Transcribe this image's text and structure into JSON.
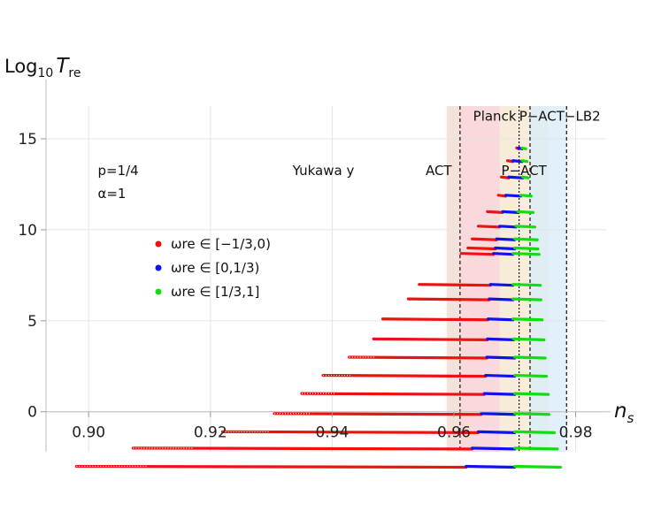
{
  "chart_data": {
    "type": "scatter",
    "title": "",
    "xlabel": "n_s",
    "ylabel": "Log10 T_re",
    "xlim": [
      0.893,
      0.985
    ],
    "ylim": [
      -2.2,
      16.8
    ],
    "x_ticks": [
      0.9,
      0.92,
      0.94,
      0.96,
      0.98
    ],
    "x_tick_labels": [
      "0.90",
      "0.92",
      "0.94",
      "0.96",
      "0.98"
    ],
    "y_ticks": [
      0,
      5,
      10,
      15
    ],
    "y_tick_labels": [
      "0",
      "5",
      "10",
      "15"
    ],
    "gridlines": true,
    "xlabel_text": {
      "main": "n",
      "sub": "s"
    },
    "ylabel_text": {
      "main": "Log",
      "sub": "10",
      "italic": "T",
      "sub2": "re"
    },
    "bands": [
      {
        "name": "ACT",
        "range": [
          0.9588,
          0.97
        ],
        "color": "#f3dcd2"
      },
      {
        "name": "Planck",
        "range": [
          0.961,
          0.973
        ],
        "color": "#fbd6dc"
      },
      {
        "name": "P-ACT",
        "range": [
          0.9675,
          0.9755
        ],
        "color": "#f6f0d8"
      },
      {
        "name": "P-ACT-LB2",
        "range": [
          0.9725,
          0.9785
        ],
        "color": "#d9ecf9"
      }
    ],
    "vlines": [
      0.961,
      0.9707,
      0.9725,
      0.9785
    ],
    "band_labels": [
      {
        "text": "Planck",
        "x": 0.9667,
        "y": 16.25
      },
      {
        "text": "P−ACT−LB2",
        "x": 0.9774,
        "y": 16.25
      },
      {
        "text": "ACT",
        "x": 0.9575,
        "y": 13.25
      },
      {
        "text": "P−ACT",
        "x": 0.9715,
        "y": 13.25
      }
    ],
    "annotations": [
      {
        "text": "p=1/4",
        "x": 0.9015,
        "y": 13.25
      },
      {
        "text": "α=1",
        "x": 0.9015,
        "y": 12.0
      },
      {
        "text": "Yukawa y",
        "x": 0.9335,
        "y": 13.25
      }
    ],
    "legend": {
      "placement": "center-left",
      "entries": [
        {
          "label": "ωre ∈ [−1/3,0)",
          "color": "#ee1111"
        },
        {
          "label": "ωre ∈ [0,1/3)",
          "color": "#1111ee"
        },
        {
          "label": "ωre ∈ [1/3,1]",
          "color": "#11dd11"
        }
      ]
    },
    "series": [
      {
        "log10_Tre": 14.5,
        "ns_start": 0.9703,
        "ns_red_end": 0.9706,
        "ns_blue_end": 0.9712,
        "ns_end": 0.9718
      },
      {
        "log10_Tre": 13.8,
        "ns_start": 0.9688,
        "ns_red_end": 0.9697,
        "ns_blue_end": 0.9712,
        "ns_end": 0.972
      },
      {
        "log10_Tre": 12.9,
        "ns_start": 0.9678,
        "ns_red_end": 0.969,
        "ns_blue_end": 0.9713,
        "ns_end": 0.9722
      },
      {
        "log10_Tre": 11.9,
        "ns_start": 0.9673,
        "ns_red_end": 0.9685,
        "ns_blue_end": 0.971,
        "ns_end": 0.9727
      },
      {
        "log10_Tre": 11.0,
        "ns_start": 0.9655,
        "ns_red_end": 0.968,
        "ns_blue_end": 0.9705,
        "ns_end": 0.973
      },
      {
        "log10_Tre": 10.2,
        "ns_start": 0.964,
        "ns_red_end": 0.9675,
        "ns_blue_end": 0.9702,
        "ns_end": 0.9733
      },
      {
        "log10_Tre": 9.5,
        "ns_start": 0.963,
        "ns_red_end": 0.967,
        "ns_blue_end": 0.97,
        "ns_end": 0.9737
      },
      {
        "log10_Tre": 9.0,
        "ns_start": 0.9623,
        "ns_red_end": 0.9668,
        "ns_blue_end": 0.97,
        "ns_end": 0.9738
      },
      {
        "log10_Tre": 8.7,
        "ns_start": 0.9612,
        "ns_red_end": 0.9665,
        "ns_blue_end": 0.9697,
        "ns_end": 0.974
      },
      {
        "log10_Tre": 7.0,
        "ns_start": 0.9543,
        "ns_red_end": 0.966,
        "ns_blue_end": 0.9697,
        "ns_end": 0.9742
      },
      {
        "log10_Tre": 6.2,
        "ns_start": 0.9525,
        "ns_red_end": 0.9658,
        "ns_blue_end": 0.9697,
        "ns_end": 0.9743
      },
      {
        "log10_Tre": 5.1,
        "ns_start": 0.9483,
        "ns_red_end": 0.9656,
        "ns_blue_end": 0.9697,
        "ns_end": 0.9745
      },
      {
        "log10_Tre": 4.0,
        "ns_start": 0.9468,
        "ns_red_end": 0.9655,
        "ns_blue_end": 0.9698,
        "ns_end": 0.9748
      },
      {
        "log10_Tre": 3.0,
        "ns_start": 0.9428,
        "ns_red_end": 0.9654,
        "ns_blue_end": 0.97,
        "ns_end": 0.975
      },
      {
        "log10_Tre": 2.0,
        "ns_start": 0.9385,
        "ns_red_end": 0.9652,
        "ns_blue_end": 0.97,
        "ns_end": 0.9752
      },
      {
        "log10_Tre": 1.0,
        "ns_start": 0.935,
        "ns_red_end": 0.965,
        "ns_blue_end": 0.97,
        "ns_end": 0.9755
      },
      {
        "log10_Tre": -0.1,
        "ns_start": 0.9305,
        "ns_red_end": 0.9645,
        "ns_blue_end": 0.97,
        "ns_end": 0.9756
      },
      {
        "log10_Tre": -1.1,
        "ns_start": 0.922,
        "ns_red_end": 0.964,
        "ns_blue_end": 0.97,
        "ns_end": 0.9765
      },
      {
        "log10_Tre": -2.0,
        "ns_start": 0.9073,
        "ns_red_end": 0.963,
        "ns_blue_end": 0.97,
        "ns_end": 0.977
      },
      {
        "log10_Tre": -3.0,
        "ns_start": 0.898,
        "ns_red_end": 0.962,
        "ns_blue_end": 0.97,
        "ns_end": 0.9775
      }
    ]
  }
}
